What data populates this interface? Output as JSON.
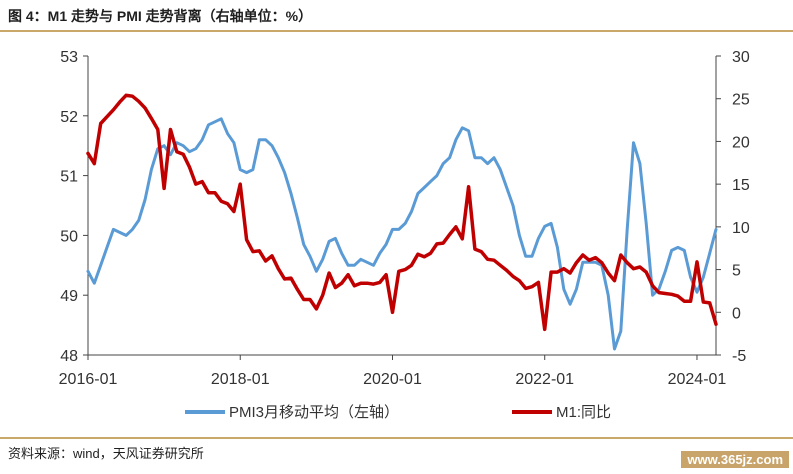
{
  "header": {
    "title": "图 4：M1 走势与 PMI 走势背离（右轴单位：%）"
  },
  "footer": {
    "source": "资料来源：wind，天风证券研究所",
    "watermark": "www.365jz.com"
  },
  "chart_data": {
    "type": "line",
    "title": "",
    "xlabel": "",
    "ylabel": "",
    "x_ticks": [
      "2016-01",
      "2018-01",
      "2020-01",
      "2022-01",
      "2024-01"
    ],
    "x_range": [
      "2016-01",
      "2024-04"
    ],
    "y_left": {
      "ticks": [
        48,
        49,
        50,
        51,
        52,
        53
      ],
      "range": [
        48,
        53
      ]
    },
    "y_right": {
      "ticks": [
        -5,
        0,
        5,
        10,
        15,
        20,
        25,
        30
      ],
      "range": [
        -5,
        30
      ]
    },
    "legend_position": "bottom",
    "grid": false,
    "series": [
      {
        "name": "PMI3月移动平均（左轴）",
        "axis": "left",
        "color": "#5b9bd5",
        "x": [
          "2016-01",
          "2016-02",
          "2016-03",
          "2016-04",
          "2016-05",
          "2016-06",
          "2016-07",
          "2016-08",
          "2016-09",
          "2016-10",
          "2016-11",
          "2016-12",
          "2017-01",
          "2017-02",
          "2017-03",
          "2017-04",
          "2017-05",
          "2017-06",
          "2017-07",
          "2017-08",
          "2017-09",
          "2017-10",
          "2017-11",
          "2017-12",
          "2018-01",
          "2018-02",
          "2018-03",
          "2018-04",
          "2018-05",
          "2018-06",
          "2018-07",
          "2018-08",
          "2018-09",
          "2018-10",
          "2018-11",
          "2018-12",
          "2019-01",
          "2019-02",
          "2019-03",
          "2019-04",
          "2019-05",
          "2019-06",
          "2019-07",
          "2019-08",
          "2019-09",
          "2019-10",
          "2019-11",
          "2019-12",
          "2020-01",
          "2020-02",
          "2020-03",
          "2020-04",
          "2020-05",
          "2020-06",
          "2020-07",
          "2020-08",
          "2020-09",
          "2020-10",
          "2020-11",
          "2020-12",
          "2021-01",
          "2021-02",
          "2021-03",
          "2021-04",
          "2021-05",
          "2021-06",
          "2021-07",
          "2021-08",
          "2021-09",
          "2021-10",
          "2021-11",
          "2021-12",
          "2022-01",
          "2022-02",
          "2022-03",
          "2022-04",
          "2022-05",
          "2022-06",
          "2022-07",
          "2022-08",
          "2022-09",
          "2022-10",
          "2022-11",
          "2022-12",
          "2023-01",
          "2023-02",
          "2023-03",
          "2023-04",
          "2023-05",
          "2023-06",
          "2023-07",
          "2023-08",
          "2023-09",
          "2023-10",
          "2023-11",
          "2023-12",
          "2024-01",
          "2024-02",
          "2024-03",
          "2024-04"
        ],
        "values": [
          49.4,
          49.2,
          49.5,
          49.8,
          50.1,
          50.05,
          50.0,
          50.1,
          50.25,
          50.6,
          51.1,
          51.45,
          51.5,
          51.35,
          51.55,
          51.5,
          51.4,
          51.45,
          51.6,
          51.85,
          51.9,
          51.95,
          51.7,
          51.55,
          51.1,
          51.05,
          51.1,
          51.6,
          51.6,
          51.5,
          51.3,
          51.05,
          50.7,
          50.3,
          49.85,
          49.65,
          49.4,
          49.6,
          49.9,
          49.95,
          49.7,
          49.5,
          49.5,
          49.6,
          49.55,
          49.5,
          49.7,
          49.85,
          50.1,
          50.1,
          50.2,
          50.4,
          50.7,
          50.8,
          50.9,
          51.0,
          51.2,
          51.3,
          51.6,
          51.8,
          51.75,
          51.3,
          51.3,
          51.2,
          51.3,
          51.1,
          50.8,
          50.5,
          50.0,
          49.65,
          49.65,
          49.95,
          50.15,
          50.2,
          49.8,
          49.1,
          48.85,
          49.1,
          49.55,
          49.55,
          49.55,
          49.5,
          49.0,
          48.1,
          48.4,
          50.1,
          51.55,
          51.2,
          50.2,
          49.0,
          49.1,
          49.4,
          49.75,
          49.8,
          49.75,
          49.3,
          49.05,
          49.3,
          49.7,
          50.1
        ]
      },
      {
        "name": "M1:同比",
        "axis": "right",
        "color": "#c00000",
        "x": [
          "2016-01",
          "2016-02",
          "2016-03",
          "2016-04",
          "2016-05",
          "2016-06",
          "2016-07",
          "2016-08",
          "2016-09",
          "2016-10",
          "2016-11",
          "2016-12",
          "2017-01",
          "2017-02",
          "2017-03",
          "2017-04",
          "2017-05",
          "2017-06",
          "2017-07",
          "2017-08",
          "2017-09",
          "2017-10",
          "2017-11",
          "2017-12",
          "2018-01",
          "2018-02",
          "2018-03",
          "2018-04",
          "2018-05",
          "2018-06",
          "2018-07",
          "2018-08",
          "2018-09",
          "2018-10",
          "2018-11",
          "2018-12",
          "2019-01",
          "2019-02",
          "2019-03",
          "2019-04",
          "2019-05",
          "2019-06",
          "2019-07",
          "2019-08",
          "2019-09",
          "2019-10",
          "2019-11",
          "2019-12",
          "2020-01",
          "2020-02",
          "2020-03",
          "2020-04",
          "2020-05",
          "2020-06",
          "2020-07",
          "2020-08",
          "2020-09",
          "2020-10",
          "2020-11",
          "2020-12",
          "2021-01",
          "2021-02",
          "2021-03",
          "2021-04",
          "2021-05",
          "2021-06",
          "2021-07",
          "2021-08",
          "2021-09",
          "2021-10",
          "2021-11",
          "2021-12",
          "2022-01",
          "2022-02",
          "2022-03",
          "2022-04",
          "2022-05",
          "2022-06",
          "2022-07",
          "2022-08",
          "2022-09",
          "2022-10",
          "2022-11",
          "2022-12",
          "2023-01",
          "2023-02",
          "2023-03",
          "2023-04",
          "2023-05",
          "2023-06",
          "2023-07",
          "2023-08",
          "2023-09",
          "2023-10",
          "2023-11",
          "2023-12",
          "2024-01",
          "2024-02",
          "2024-03",
          "2024-04"
        ],
        "values": [
          18.6,
          17.4,
          22.1,
          22.9,
          23.7,
          24.6,
          25.4,
          25.3,
          24.7,
          23.9,
          22.7,
          21.4,
          14.5,
          21.4,
          18.8,
          18.5,
          17.0,
          15.0,
          15.3,
          14.0,
          14.0,
          13.0,
          12.7,
          11.8,
          15.0,
          8.5,
          7.1,
          7.2,
          6.0,
          6.6,
          5.1,
          3.9,
          4.0,
          2.7,
          1.5,
          1.5,
          0.4,
          2.0,
          4.6,
          2.9,
          3.4,
          4.4,
          3.1,
          3.4,
          3.4,
          3.3,
          3.5,
          4.4,
          0.0,
          4.8,
          5.0,
          5.5,
          6.8,
          6.5,
          6.9,
          8.0,
          8.1,
          9.1,
          10.0,
          8.6,
          14.7,
          7.4,
          7.1,
          6.2,
          6.1,
          5.5,
          4.9,
          4.2,
          3.7,
          2.8,
          3.0,
          3.5,
          -2.0,
          4.7,
          4.7,
          5.1,
          4.6,
          5.8,
          6.7,
          6.1,
          6.4,
          5.8,
          4.6,
          3.7,
          6.7,
          5.8,
          5.1,
          5.3,
          4.7,
          3.1,
          2.3,
          2.2,
          2.1,
          1.9,
          1.3,
          1.3,
          5.9,
          1.2,
          1.1,
          -1.4
        ]
      }
    ]
  }
}
